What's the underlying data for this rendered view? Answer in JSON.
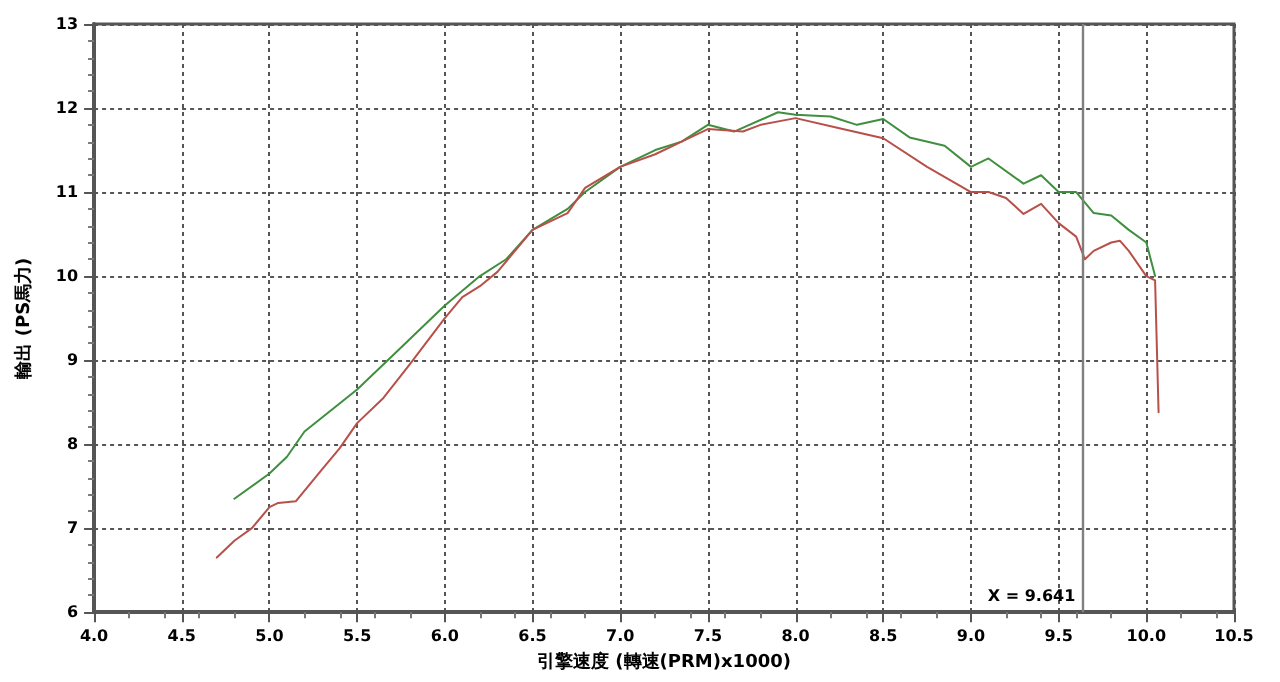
{
  "chart_data": {
    "type": "line",
    "xlabel": "引擎速度 (轉速(PRM)x1000)",
    "ylabel": "輸出 (PS馬力)",
    "xlim": [
      4,
      10.5
    ],
    "ylim": [
      6,
      13
    ],
    "xticks": [
      {
        "value": 4,
        "label": "4.0"
      },
      {
        "value": 4.5,
        "label": "4.5"
      },
      {
        "value": 5,
        "label": "5.0"
      },
      {
        "value": 5.5,
        "label": "5.5"
      },
      {
        "value": 6,
        "label": "6.0"
      },
      {
        "value": 6.5,
        "label": "6.5"
      },
      {
        "value": 7,
        "label": "7.0"
      },
      {
        "value": 7.5,
        "label": "7.5"
      },
      {
        "value": 8,
        "label": "8.0"
      },
      {
        "value": 8.5,
        "label": "8.5"
      },
      {
        "value": 9,
        "label": "9.0"
      },
      {
        "value": 9.5,
        "label": "9.5"
      },
      {
        "value": 10,
        "label": "10.0"
      },
      {
        "value": 10.5,
        "label": "10.5"
      }
    ],
    "yticks": [
      6,
      7,
      8,
      9,
      10,
      11,
      12,
      13
    ],
    "grid": true,
    "marker": "none",
    "line_style": "solid",
    "ref_lines": [
      {
        "axis": "x",
        "value": 9.641,
        "label": "X = 9.641",
        "color": "#808080",
        "line_style": "solid"
      }
    ],
    "series": [
      {
        "color": "#3f8f3f",
        "x": [
          4.8,
          5.0,
          5.1,
          5.2,
          5.35,
          5.5,
          5.7,
          5.85,
          6.0,
          6.2,
          6.35,
          6.5,
          6.7,
          6.8,
          7.0,
          7.2,
          7.35,
          7.5,
          7.65,
          7.9,
          8.0,
          8.2,
          8.35,
          8.5,
          8.65,
          8.85,
          9.0,
          9.1,
          9.3,
          9.4,
          9.5,
          9.6,
          9.7,
          9.8,
          9.9,
          10.0,
          10.05
        ],
        "values": [
          7.35,
          7.65,
          7.85,
          8.15,
          8.4,
          8.65,
          9.05,
          9.35,
          9.65,
          10.0,
          10.2,
          10.55,
          10.8,
          11.0,
          11.3,
          11.5,
          11.6,
          11.8,
          11.72,
          11.95,
          11.92,
          11.9,
          11.8,
          11.87,
          11.65,
          11.55,
          11.3,
          11.4,
          11.1,
          11.2,
          11.0,
          11.0,
          10.75,
          10.72,
          10.55,
          10.4,
          10.0
        ]
      },
      {
        "color": "#b8504a",
        "x": [
          4.7,
          4.8,
          4.9,
          5.0,
          5.05,
          5.15,
          5.3,
          5.4,
          5.5,
          5.65,
          5.8,
          6.0,
          6.1,
          6.2,
          6.3,
          6.5,
          6.7,
          6.8,
          7.0,
          7.2,
          7.35,
          7.5,
          7.7,
          7.8,
          8.0,
          8.25,
          8.5,
          8.75,
          9.0,
          9.1,
          9.2,
          9.3,
          9.4,
          9.5,
          9.6,
          9.65,
          9.7,
          9.8,
          9.85,
          9.9,
          10.0,
          10.05,
          10.07
        ],
        "values": [
          6.65,
          6.85,
          7.0,
          7.25,
          7.3,
          7.32,
          7.7,
          7.95,
          8.25,
          8.55,
          8.95,
          9.5,
          9.75,
          9.88,
          10.05,
          10.55,
          10.75,
          11.05,
          11.3,
          11.45,
          11.6,
          11.75,
          11.72,
          11.8,
          11.88,
          11.76,
          11.64,
          11.3,
          11.0,
          11.0,
          10.93,
          10.74,
          10.86,
          10.63,
          10.47,
          10.2,
          10.3,
          10.4,
          10.42,
          10.3,
          10.0,
          9.95,
          8.38
        ]
      }
    ]
  }
}
